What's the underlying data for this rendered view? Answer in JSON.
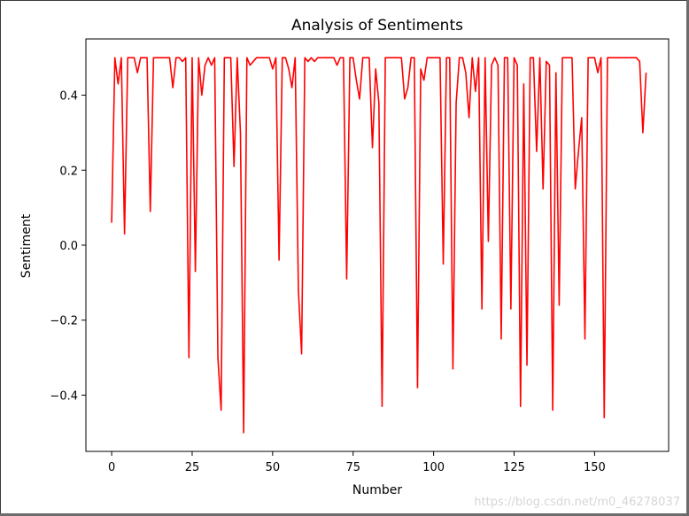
{
  "watermark": "https://blog.csdn.net/m0_46278037",
  "colors": {
    "line": "#ff0000",
    "axis": "#000000",
    "background": "#ffffff"
  },
  "chart_data": {
    "type": "line",
    "title": "Analysis of Sentiments",
    "xlabel": "Number",
    "ylabel": "Sentiment",
    "xlim": [
      -8,
      173
    ],
    "ylim": [
      -0.55,
      0.55
    ],
    "xticks": [
      0,
      25,
      50,
      75,
      100,
      125,
      150
    ],
    "yticks": [
      -0.4,
      -0.2,
      0.0,
      0.2,
      0.4
    ],
    "ytick_labels": [
      "−0.4",
      "−0.2",
      "0.0",
      "0.2",
      "0.4"
    ],
    "grid": false,
    "series": [
      {
        "color": "#ff0000",
        "values": [
          0.06,
          0.5,
          0.43,
          0.5,
          0.03,
          0.5,
          0.5,
          0.5,
          0.46,
          0.5,
          0.5,
          0.5,
          0.09,
          0.5,
          0.5,
          0.5,
          0.5,
          0.5,
          0.5,
          0.42,
          0.5,
          0.5,
          0.49,
          0.5,
          -0.3,
          0.5,
          -0.07,
          0.5,
          0.4,
          0.48,
          0.5,
          0.48,
          0.5,
          -0.3,
          -0.44,
          0.5,
          0.5,
          0.5,
          0.21,
          0.5,
          0.3,
          -0.5,
          0.5,
          0.48,
          0.49,
          0.5,
          0.5,
          0.5,
          0.5,
          0.5,
          0.47,
          0.5,
          -0.04,
          0.5,
          0.5,
          0.47,
          0.42,
          0.5,
          -0.12,
          -0.29,
          0.5,
          0.49,
          0.5,
          0.49,
          0.5,
          0.5,
          0.5,
          0.5,
          0.5,
          0.5,
          0.48,
          0.5,
          0.5,
          -0.09,
          0.5,
          0.5,
          0.44,
          0.39,
          0.5,
          0.5,
          0.5,
          0.26,
          0.47,
          0.38,
          -0.43,
          0.5,
          0.5,
          0.5,
          0.5,
          0.5,
          0.5,
          0.39,
          0.42,
          0.5,
          0.5,
          -0.38,
          0.47,
          0.44,
          0.5,
          0.5,
          0.5,
          0.5,
          0.5,
          -0.05,
          0.5,
          0.5,
          -0.33,
          0.38,
          0.5,
          0.5,
          0.46,
          0.34,
          0.5,
          0.41,
          0.5,
          -0.17,
          0.5,
          0.01,
          0.48,
          0.5,
          0.48,
          -0.25,
          0.5,
          0.5,
          -0.17,
          0.5,
          0.48,
          -0.43,
          0.43,
          -0.32,
          0.5,
          0.5,
          0.25,
          0.5,
          0.15,
          0.49,
          0.48,
          -0.44,
          0.46,
          -0.16,
          0.5,
          0.5,
          0.5,
          0.5,
          0.15,
          0.25,
          0.34,
          -0.25,
          0.5,
          0.5,
          0.5,
          0.46,
          0.5,
          -0.46,
          0.5,
          0.5,
          0.5,
          0.5,
          0.5,
          0.5,
          0.5,
          0.5,
          0.5,
          0.5,
          0.49,
          0.3,
          0.46
        ]
      }
    ]
  }
}
